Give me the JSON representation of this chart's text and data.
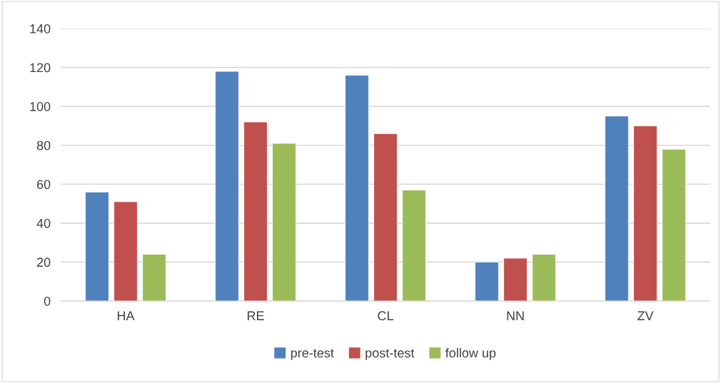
{
  "chart_data": {
    "type": "bar",
    "categories": [
      "HA",
      "RE",
      "CL",
      "NN",
      "ZV"
    ],
    "series": [
      {
        "name": "pre-test",
        "color": "#4f81bd",
        "values": [
          56,
          118,
          116,
          20,
          95
        ]
      },
      {
        "name": "post-test",
        "color": "#c0504d",
        "values": [
          51,
          92,
          86,
          22,
          90
        ]
      },
      {
        "name": "follow up",
        "color": "#9bbb59",
        "values": [
          24,
          81,
          57,
          24,
          78
        ]
      }
    ],
    "ylim": [
      0,
      140
    ],
    "yticks": [
      0,
      20,
      40,
      60,
      80,
      100,
      120,
      140
    ],
    "grid": "y",
    "legend": "bottom"
  }
}
